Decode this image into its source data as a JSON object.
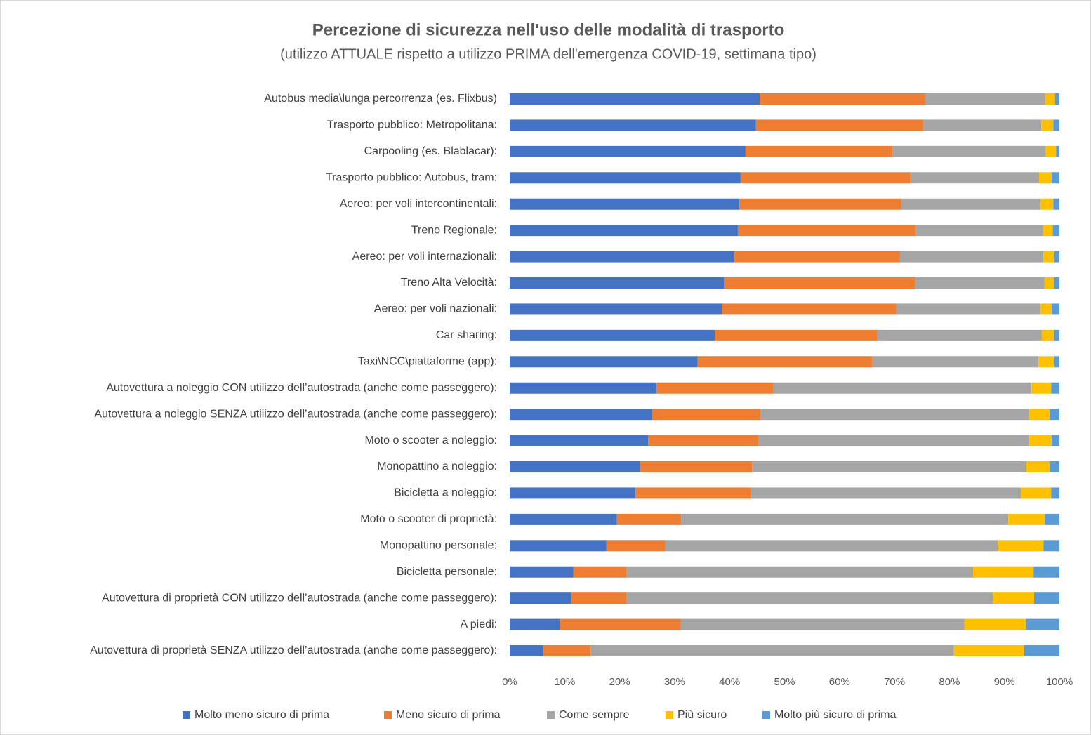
{
  "chart_data": {
    "type": "stacked_bar_horizontal",
    "title": "Percezione di sicurezza nell'uso delle modalità di trasporto",
    "subtitle": "(utilizzo ATTUALE rispetto a utilizzo PRIMA dell'emergenza COVID-19, settimana tipo)",
    "categories": [
      "Autobus media\\lunga percorrenza (es. Flixbus)",
      "Trasporto pubblico: Metropolitana:",
      "Carpooling (es. Blablacar):",
      "Trasporto pubblico: Autobus, tram:",
      "Aereo: per voli intercontinentali:",
      "Treno Regionale:",
      "Aereo: per voli internazionali:",
      "Treno Alta Velocità:",
      "Aereo: per voli nazionali:",
      "Car sharing:",
      "Taxi\\NCC\\piattaforme (app):",
      "Autovettura a noleggio CON utilizzo dell’autostrada (anche come passeggero):",
      "Autovettura a noleggio SENZA utilizzo dell’autostrada (anche come passeggero):",
      "Moto o scooter a noleggio:",
      "Monopattino a noleggio:",
      "Bicicletta a noleggio:",
      "Moto o scooter di proprietà:",
      "Monopattino personale:",
      "Bicicletta personale:",
      "Autovettura di proprietà CON utilizzo dell’autostrada (anche come passeggero):",
      "A piedi:",
      "Autovettura di proprietà SENZA utilizzo dell’autostrada (anche come passeggero):"
    ],
    "series": [
      {
        "name": "Molto meno sicuro di prima",
        "color": "#4472c4",
        "values": [
          45.5,
          44.8,
          42.9,
          42.0,
          41.8,
          41.5,
          40.9,
          39.0,
          38.6,
          37.3,
          34.2,
          26.7,
          25.9,
          25.2,
          23.8,
          22.9,
          19.5,
          17.6,
          11.6,
          11.2,
          9.1,
          6.1
        ]
      },
      {
        "name": "Meno sicuro di prima",
        "color": "#ed7d31",
        "values": [
          30.1,
          30.4,
          26.8,
          30.9,
          29.4,
          32.4,
          30.1,
          34.7,
          31.7,
          29.6,
          31.8,
          21.3,
          19.7,
          20.1,
          20.3,
          20.9,
          11.7,
          10.7,
          9.7,
          10.1,
          22.0,
          8.6
        ]
      },
      {
        "name": "Come sempre",
        "color": "#a5a5a5",
        "values": [
          21.8,
          21.5,
          27.8,
          23.4,
          25.4,
          23.1,
          26.1,
          23.6,
          26.3,
          29.9,
          30.2,
          46.9,
          48.8,
          49.1,
          49.8,
          49.2,
          59.5,
          60.5,
          63.0,
          66.6,
          51.6,
          66.1
        ]
      },
      {
        "name": "Più sicuro",
        "color": "#ffc000",
        "values": [
          1.8,
          2.2,
          1.9,
          2.3,
          2.3,
          1.8,
          2.0,
          1.7,
          2.0,
          2.2,
          2.9,
          3.6,
          3.8,
          4.2,
          4.3,
          5.5,
          6.6,
          8.3,
          11.0,
          7.5,
          11.2,
          12.8
        ]
      },
      {
        "name": "Molto più sicuro di prima",
        "color": "#5b9bd5",
        "values": [
          0.8,
          1.1,
          0.6,
          1.4,
          1.1,
          1.2,
          0.9,
          1.0,
          1.4,
          1.0,
          0.9,
          1.5,
          1.8,
          1.4,
          1.8,
          1.5,
          2.7,
          2.9,
          4.7,
          4.6,
          6.1,
          6.4
        ]
      }
    ],
    "xlim": [
      0,
      100
    ],
    "xticks": [
      {
        "value": 0,
        "label": "0%"
      },
      {
        "value": 10,
        "label": "10%"
      },
      {
        "value": 20,
        "label": "20%"
      },
      {
        "value": 30,
        "label": "30%"
      },
      {
        "value": 40,
        "label": "40%"
      },
      {
        "value": 50,
        "label": "50%"
      },
      {
        "value": 60,
        "label": "60%"
      },
      {
        "value": 70,
        "label": "70%"
      },
      {
        "value": 80,
        "label": "80%"
      },
      {
        "value": 90,
        "label": "90%"
      },
      {
        "value": 100,
        "label": "100%"
      }
    ],
    "grid": false,
    "legend": "bottom"
  }
}
